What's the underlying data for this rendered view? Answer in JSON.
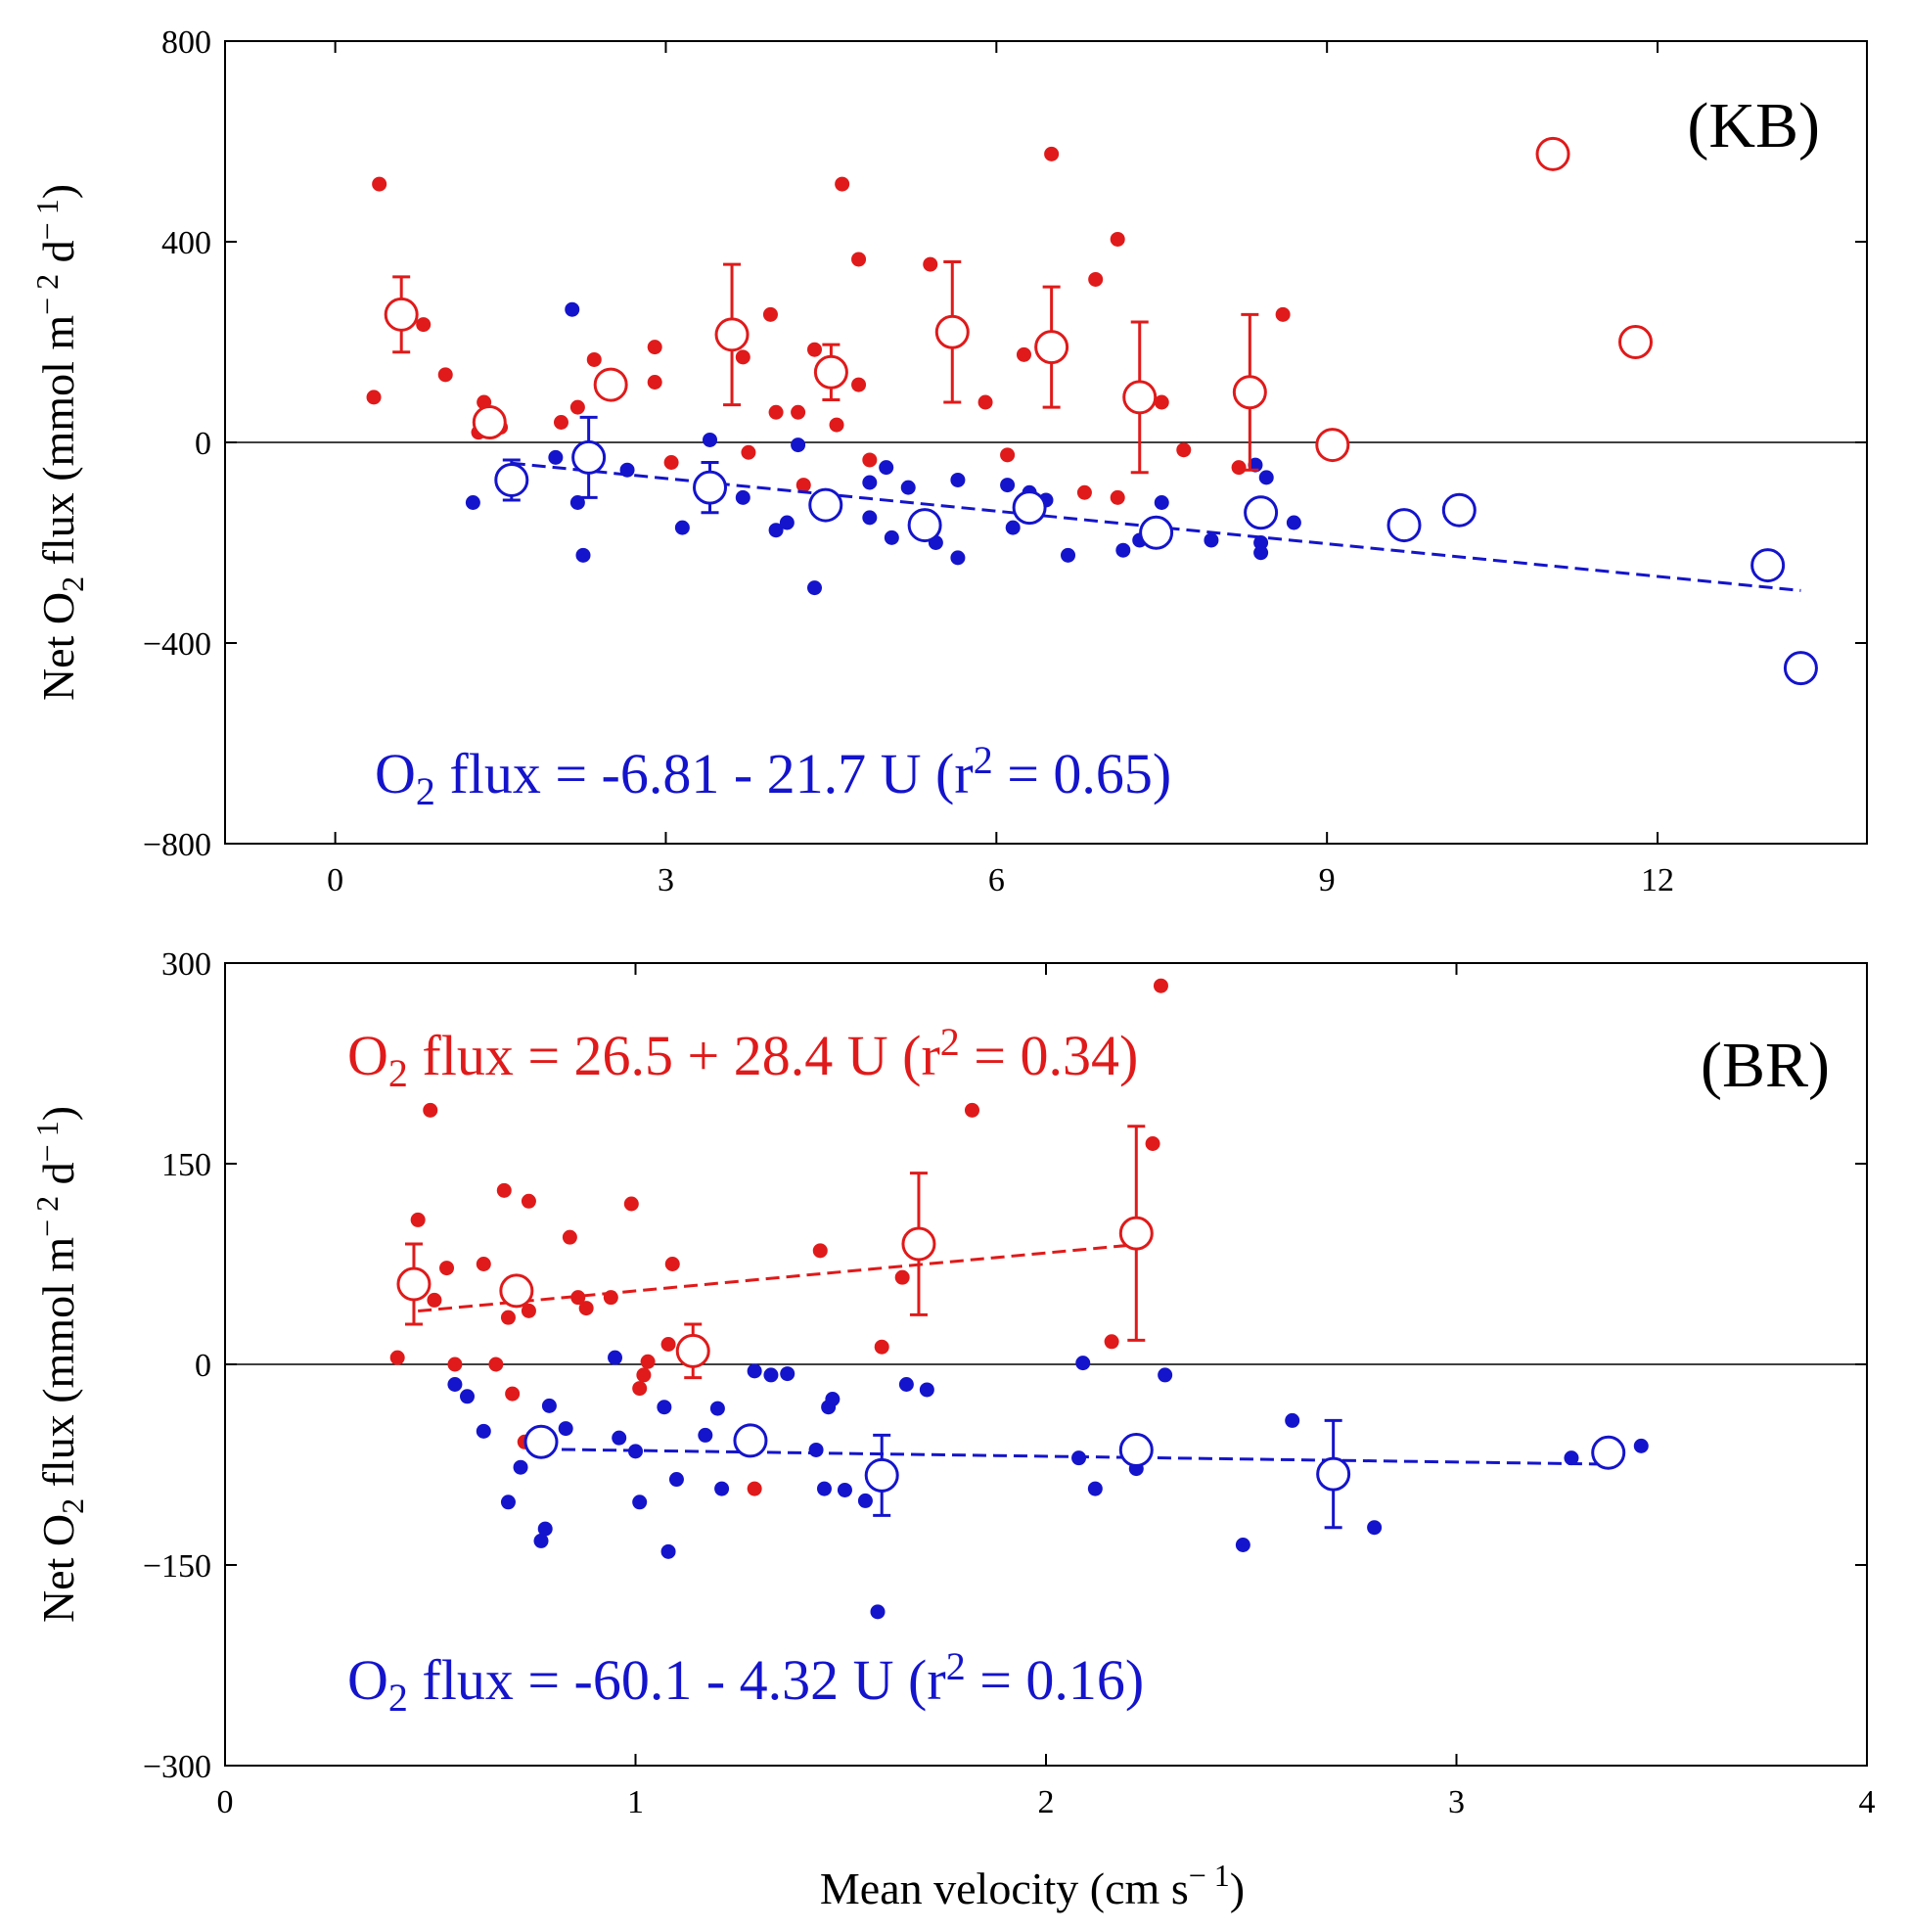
{
  "figure": {
    "x_axis_label": "Mean velocity (cm s",
    "x_axis_label_exp": "− 1",
    "x_axis_label_close": ")",
    "y_axis_label": "Net O",
    "y_axis_label_sub": "2",
    "y_axis_label_mid": " flux (mmol m",
    "y_axis_label_exp1": "− 2",
    "y_axis_label_mid2": " d",
    "y_axis_label_exp2": "− 1",
    "y_axis_label_close": ")"
  },
  "colors": {
    "red": "#e01a1a",
    "blue": "#1414cc",
    "axis": "#000000"
  },
  "chart_data": [
    {
      "id": "KB",
      "type": "scatter",
      "panel_label": "(KB)",
      "xlabel": "",
      "ylabel": "Net O2 flux (mmol m-2 d-1)",
      "xlim": [
        -1,
        13.9
      ],
      "ylim": [
        -800,
        800
      ],
      "xticks": [
        0,
        3,
        6,
        9,
        12
      ],
      "yticks": [
        -800,
        -400,
        0,
        400,
        800
      ],
      "ytick_labels": [
        "−800",
        "−400",
        "0",
        "400",
        "800"
      ],
      "zero_line": true,
      "equations": [
        {
          "series": "blue",
          "prefix": "O",
          "sub": "2",
          "text": " flux = -6.81 - 21.7 U (r",
          "sup": "2",
          "suffix": " = 0.65)"
        }
      ],
      "fits": [
        {
          "series": "blue",
          "x0": 1.6,
          "x1": 13.3,
          "intercept": -6.81,
          "slope": -21.7
        }
      ],
      "series": [
        {
          "name": "red-individual",
          "color": "red",
          "marker": "dot",
          "points": [
            [
              0.35,
              90
            ],
            [
              0.4,
              515
            ],
            [
              0.8,
              235
            ],
            [
              1.0,
              135
            ],
            [
              1.3,
              20
            ],
            [
              1.35,
              80
            ],
            [
              1.5,
              30
            ],
            [
              2.05,
              40
            ],
            [
              2.2,
              70
            ],
            [
              2.35,
              165
            ],
            [
              2.9,
              120
            ],
            [
              2.9,
              190
            ],
            [
              3.05,
              -40
            ],
            [
              3.7,
              170
            ],
            [
              3.75,
              -20
            ],
            [
              3.95,
              255
            ],
            [
              4.0,
              60
            ],
            [
              4.2,
              60
            ],
            [
              4.25,
              -85
            ],
            [
              4.35,
              185
            ],
            [
              4.55,
              35
            ],
            [
              4.6,
              515
            ],
            [
              4.75,
              365
            ],
            [
              4.75,
              115
            ],
            [
              4.85,
              -35
            ],
            [
              5.4,
              355
            ],
            [
              5.9,
              80
            ],
            [
              6.1,
              -25
            ],
            [
              6.25,
              175
            ],
            [
              6.5,
              575
            ],
            [
              6.8,
              -100
            ],
            [
              6.9,
              325
            ],
            [
              7.1,
              405
            ],
            [
              7.1,
              -110
            ],
            [
              7.5,
              80
            ],
            [
              7.7,
              -15
            ],
            [
              8.2,
              -50
            ],
            [
              8.6,
              255
            ]
          ]
        },
        {
          "name": "blue-individual",
          "color": "blue",
          "marker": "dot",
          "points": [
            [
              1.25,
              -120
            ],
            [
              2.0,
              -30
            ],
            [
              2.15,
              265
            ],
            [
              2.2,
              -120
            ],
            [
              2.25,
              -225
            ],
            [
              2.65,
              -55
            ],
            [
              3.15,
              -170
            ],
            [
              3.4,
              5
            ],
            [
              3.7,
              -110
            ],
            [
              4.0,
              -175
            ],
            [
              4.1,
              -160
            ],
            [
              4.2,
              -5
            ],
            [
              4.35,
              -290
            ],
            [
              4.85,
              -80
            ],
            [
              4.85,
              -150
            ],
            [
              5.0,
              -50
            ],
            [
              5.05,
              -190
            ],
            [
              5.2,
              -90
            ],
            [
              5.45,
              -200
            ],
            [
              5.65,
              -75
            ],
            [
              5.65,
              -230
            ],
            [
              6.1,
              -85
            ],
            [
              6.15,
              -170
            ],
            [
              6.3,
              -100
            ],
            [
              6.45,
              -115
            ],
            [
              6.65,
              -225
            ],
            [
              7.15,
              -215
            ],
            [
              7.3,
              -195
            ],
            [
              7.5,
              -120
            ],
            [
              7.95,
              -195
            ],
            [
              8.35,
              -45
            ],
            [
              8.4,
              -200
            ],
            [
              8.4,
              -220
            ],
            [
              8.45,
              -70
            ],
            [
              8.7,
              -160
            ]
          ]
        },
        {
          "name": "red-binned-mean",
          "color": "red",
          "marker": "open",
          "points": [
            [
              0.6,
              255,
              75
            ],
            [
              1.4,
              40,
              0
            ],
            [
              2.5,
              115,
              0
            ],
            [
              3.6,
              215,
              140
            ],
            [
              4.5,
              140,
              55
            ],
            [
              5.6,
              220,
              140
            ],
            [
              6.5,
              190,
              120
            ],
            [
              7.3,
              90,
              150
            ],
            [
              8.3,
              100,
              155
            ],
            [
              9.05,
              -5,
              0
            ],
            [
              11.05,
              575,
              0
            ],
            [
              11.8,
              200,
              0
            ]
          ]
        },
        {
          "name": "blue-binned-mean",
          "color": "blue",
          "marker": "open",
          "points": [
            [
              1.6,
              -75,
              40
            ],
            [
              2.3,
              -30,
              80
            ],
            [
              3.4,
              -90,
              50
            ],
            [
              4.45,
              -125,
              0
            ],
            [
              5.35,
              -165,
              0
            ],
            [
              6.3,
              -130,
              0
            ],
            [
              7.45,
              -180,
              0
            ],
            [
              8.4,
              -140,
              0
            ],
            [
              9.7,
              -165,
              0
            ],
            [
              10.2,
              -135,
              0
            ],
            [
              13.0,
              -245,
              0
            ],
            [
              13.3,
              -450,
              0
            ]
          ]
        }
      ]
    },
    {
      "id": "BR",
      "type": "scatter",
      "panel_label": "(BR)",
      "xlabel": "Mean velocity (cm s-1)",
      "ylabel": "Net O2 flux (mmol m-2 d-1)",
      "xlim": [
        0,
        4
      ],
      "ylim": [
        -300,
        300
      ],
      "xticks": [
        0,
        1,
        2,
        3,
        4
      ],
      "yticks": [
        -300,
        -150,
        0,
        150,
        300
      ],
      "ytick_labels": [
        "−300",
        "−150",
        "0",
        "150",
        "300"
      ],
      "zero_line": true,
      "equations": [
        {
          "series": "red",
          "prefix": "O",
          "sub": "2",
          "text": " flux = 26.5 + 28.4 U (r",
          "sup": "2",
          "suffix": " = 0.34)"
        },
        {
          "series": "blue",
          "prefix": "O",
          "sub": "2",
          "text": " flux = -60.1 - 4.32 U (r",
          "sup": "2",
          "suffix": " = 0.16)"
        }
      ],
      "fits": [
        {
          "series": "red",
          "x0": 0.47,
          "x1": 2.22,
          "intercept": 26.5,
          "slope": 28.4
        },
        {
          "series": "blue",
          "x0": 0.77,
          "x1": 3.37,
          "intercept": -60.1,
          "slope": -4.32
        }
      ],
      "series": [
        {
          "name": "red-individual",
          "color": "red",
          "marker": "dot",
          "points": [
            [
              0.42,
              5
            ],
            [
              0.47,
              108
            ],
            [
              0.5,
              190
            ],
            [
              0.51,
              48
            ],
            [
              0.54,
              72
            ],
            [
              0.56,
              0
            ],
            [
              0.63,
              75
            ],
            [
              0.66,
              0
            ],
            [
              0.68,
              130
            ],
            [
              0.69,
              35
            ],
            [
              0.7,
              -22
            ],
            [
              0.73,
              -58
            ],
            [
              0.74,
              122
            ],
            [
              0.74,
              40
            ],
            [
              0.84,
              95
            ],
            [
              0.86,
              50
            ],
            [
              0.88,
              42
            ],
            [
              0.94,
              50
            ],
            [
              0.99,
              120
            ],
            [
              1.01,
              -18
            ],
            [
              1.02,
              -8
            ],
            [
              1.03,
              2
            ],
            [
              1.08,
              15
            ],
            [
              1.09,
              75
            ],
            [
              1.29,
              -93
            ],
            [
              1.45,
              85
            ],
            [
              1.6,
              13
            ],
            [
              1.65,
              65
            ],
            [
              1.82,
              190
            ],
            [
              2.16,
              17
            ],
            [
              2.26,
              165
            ],
            [
              2.28,
              283
            ]
          ]
        },
        {
          "name": "blue-individual",
          "color": "blue",
          "marker": "dot",
          "points": [
            [
              0.56,
              -15
            ],
            [
              0.59,
              -24
            ],
            [
              0.63,
              -50
            ],
            [
              0.69,
              -103
            ],
            [
              0.72,
              -77
            ],
            [
              0.77,
              -132
            ],
            [
              0.78,
              -123
            ],
            [
              0.79,
              -31
            ],
            [
              0.83,
              -48
            ],
            [
              0.95,
              5
            ],
            [
              0.96,
              -55
            ],
            [
              1.0,
              -65
            ],
            [
              1.01,
              -103
            ],
            [
              1.07,
              -32
            ],
            [
              1.08,
              -140
            ],
            [
              1.1,
              -86
            ],
            [
              1.17,
              -53
            ],
            [
              1.2,
              -33
            ],
            [
              1.21,
              -93
            ],
            [
              1.29,
              -5
            ],
            [
              1.33,
              -8
            ],
            [
              1.37,
              -7
            ],
            [
              1.44,
              -64
            ],
            [
              1.46,
              -93
            ],
            [
              1.47,
              -32
            ],
            [
              1.48,
              -26
            ],
            [
              1.51,
              -94
            ],
            [
              1.56,
              -102
            ],
            [
              1.59,
              -185
            ],
            [
              1.66,
              -15
            ],
            [
              1.71,
              -19
            ],
            [
              2.08,
              -70
            ],
            [
              2.09,
              1
            ],
            [
              2.12,
              -93
            ],
            [
              2.22,
              -78
            ],
            [
              2.29,
              -8
            ],
            [
              2.48,
              -135
            ],
            [
              2.6,
              -42
            ],
            [
              2.8,
              -122
            ],
            [
              3.28,
              -70
            ],
            [
              3.45,
              -61
            ]
          ]
        },
        {
          "name": "red-binned-mean",
          "color": "red",
          "marker": "open",
          "points": [
            [
              0.46,
              60,
              30
            ],
            [
              0.71,
              55,
              0
            ],
            [
              1.14,
              10,
              20
            ],
            [
              1.69,
              90,
              53
            ],
            [
              2.22,
              98,
              80
            ]
          ]
        },
        {
          "name": "blue-binned-mean",
          "color": "blue",
          "marker": "open",
          "points": [
            [
              0.77,
              -58,
              0
            ],
            [
              1.28,
              -57,
              0
            ],
            [
              1.6,
              -83,
              30
            ],
            [
              2.22,
              -64,
              10
            ],
            [
              2.7,
              -82,
              40
            ],
            [
              3.37,
              -66,
              0
            ]
          ]
        }
      ]
    }
  ]
}
